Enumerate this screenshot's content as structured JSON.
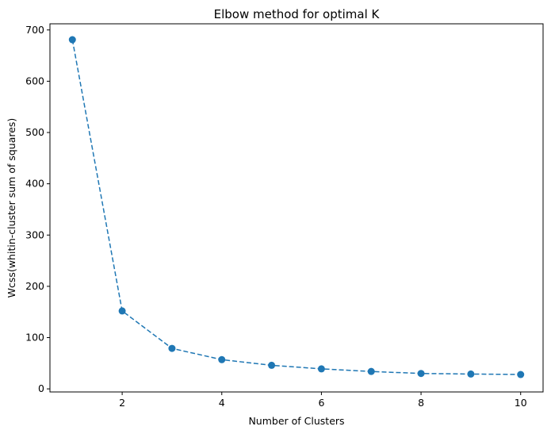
{
  "chart_data": {
    "type": "line",
    "title": "Elbow method for optimal K",
    "xlabel": "Number of Clusters",
    "ylabel": "Wcss(whitin-cluster sum of squares)",
    "xlim": [
      0.55,
      10.45
    ],
    "ylim": [
      -6,
      712
    ],
    "x_ticks": [
      2,
      4,
      6,
      8,
      10
    ],
    "y_ticks": [
      0,
      100,
      200,
      300,
      400,
      500,
      600,
      700
    ],
    "grid": false,
    "line_style": "dashed",
    "marker": "circle",
    "color": "#1f77b4",
    "x": [
      1,
      2,
      3,
      4,
      5,
      6,
      7,
      8,
      9,
      10
    ],
    "y": [
      681,
      152,
      79,
      57,
      46,
      39,
      34,
      30,
      29,
      28
    ]
  }
}
